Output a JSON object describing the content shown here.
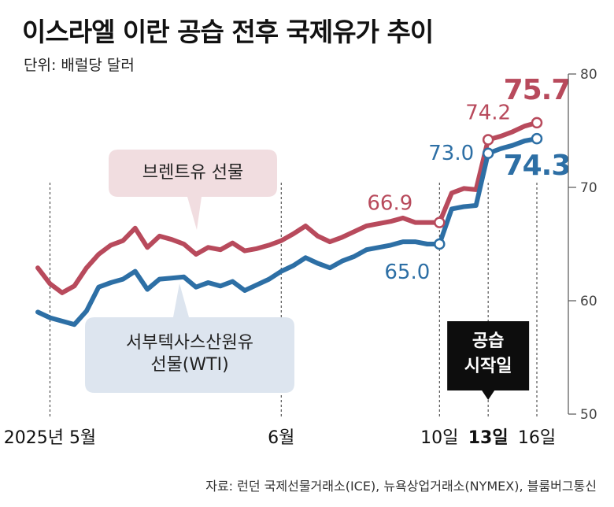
{
  "title": "이스라엘 이란 공습 전후 국제유가 추이",
  "unit_label": "단위: 배럴당 달러",
  "source": "자료: 런던 국제선물거래소(ICE), 뉴욕상업거래소(NYMEX), 블룸버그통신",
  "colors": {
    "brent": "#b84a5c",
    "wti": "#2d6fa5",
    "brent_callout_bg": "#f1dde0",
    "wti_callout_bg": "#dde5ef",
    "event_bg": "#0d0d0d"
  },
  "chart_data": {
    "type": "line",
    "title": "이스라엘 이란 공습 전후 국제유가 추이",
    "ylabel": "배럴당 달러",
    "ylim": [
      50,
      80
    ],
    "y_ticks": [
      50,
      60,
      70,
      80
    ],
    "x_tick_labels": [
      "2025년 5월",
      "6월",
      "10일",
      "13일",
      "16일"
    ],
    "x_tick_positions": [
      1,
      20,
      33,
      37,
      41
    ],
    "x_tick_bold": [
      false,
      false,
      false,
      true,
      false
    ],
    "x_range": [
      0,
      41
    ],
    "series": [
      {
        "name": "브렌트유 선물",
        "key": "brent",
        "x": [
          0,
          1,
          2,
          3,
          4,
          5,
          6,
          7,
          8,
          9,
          10,
          11,
          12,
          13,
          14,
          15,
          16,
          17,
          18,
          19,
          20,
          21,
          22,
          23,
          24,
          25,
          26,
          27,
          28,
          29,
          30,
          31,
          32,
          33,
          34,
          35,
          36,
          37,
          38,
          39,
          40,
          41
        ],
        "values": [
          62.9,
          61.5,
          60.7,
          61.3,
          62.9,
          64.1,
          64.9,
          65.3,
          66.4,
          64.7,
          65.7,
          65.4,
          65.0,
          64.1,
          64.7,
          64.5,
          65.1,
          64.4,
          64.6,
          64.9,
          65.3,
          65.9,
          66.6,
          65.7,
          65.2,
          65.6,
          66.1,
          66.6,
          66.8,
          67.0,
          67.3,
          66.9,
          66.9,
          66.9,
          69.5,
          69.9,
          69.8,
          74.2,
          74.5,
          74.9,
          75.4,
          75.7
        ],
        "annotations": [
          {
            "x": 33,
            "value": 66.9,
            "label": "66.9"
          },
          {
            "x": 37,
            "value": 74.2,
            "label": "74.2"
          },
          {
            "x": 41,
            "value": 75.7,
            "label": "75.7",
            "emphasis": true
          }
        ]
      },
      {
        "name": "서부텍사스산원유 선물(WTI)",
        "key": "wti",
        "x": [
          0,
          1,
          2,
          3,
          4,
          5,
          6,
          7,
          8,
          9,
          10,
          11,
          12,
          13,
          14,
          15,
          16,
          17,
          18,
          19,
          20,
          21,
          22,
          23,
          24,
          25,
          26,
          27,
          28,
          29,
          30,
          31,
          32,
          33,
          34,
          35,
          36,
          37,
          38,
          39,
          40,
          41
        ],
        "values": [
          59.0,
          58.5,
          58.2,
          57.9,
          59.1,
          61.2,
          61.6,
          61.9,
          62.6,
          61.0,
          61.9,
          62.0,
          62.1,
          61.2,
          61.6,
          61.3,
          61.7,
          60.9,
          61.4,
          61.9,
          62.6,
          63.1,
          63.8,
          63.3,
          62.9,
          63.5,
          63.9,
          64.5,
          64.7,
          64.9,
          65.2,
          65.2,
          65.0,
          65.0,
          68.1,
          68.3,
          68.4,
          73.0,
          73.4,
          73.7,
          74.1,
          74.3
        ],
        "annotations": [
          {
            "x": 33,
            "value": 65.0,
            "label": "65.0"
          },
          {
            "x": 37,
            "value": 73.0,
            "label": "73.0"
          },
          {
            "x": 41,
            "value": 74.3,
            "label": "74.3",
            "emphasis": true
          }
        ]
      }
    ],
    "callouts": {
      "brent": "브렌트유 선물",
      "wti": [
        "서부텍사스산원유",
        "선물(WTI)"
      ],
      "event": [
        "공습",
        "시작일"
      ]
    }
  }
}
